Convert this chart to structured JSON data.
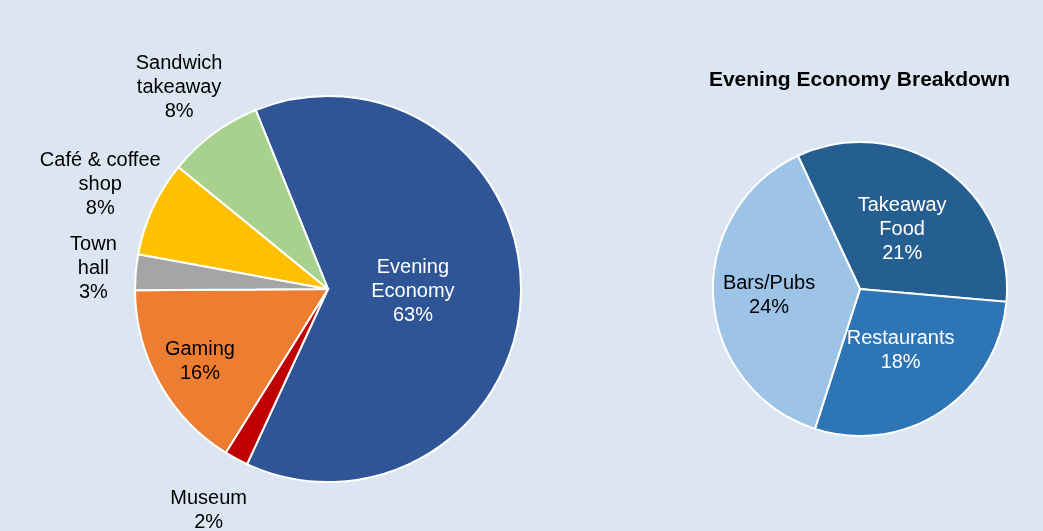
{
  "chart_data": [
    {
      "type": "pie",
      "categories": [
        "Evening Economy",
        "Museum",
        "Gaming",
        "Town hall",
        "Café & coffee shop",
        "Sandwich takeaway"
      ],
      "values": [
        63,
        2,
        16,
        3,
        8,
        8
      ],
      "value_labels": [
        "63%",
        "2%",
        "16%",
        "3%",
        "8%",
        "8%"
      ],
      "colors": [
        "#2f5597",
        "#c00000",
        "#ed7d31",
        "#a5a5a5",
        "#ffc000",
        "#a9d18e"
      ]
    },
    {
      "type": "pie",
      "title": "Evening Economy Breakdown",
      "categories": [
        "Takeaway Food",
        "Restaurants",
        "Bars/Pubs"
      ],
      "values": [
        21,
        18,
        24
      ],
      "value_labels": [
        "21%",
        "18%",
        "24%"
      ],
      "colors": [
        "#255e91",
        "#2e75b6",
        "#9dc3e6"
      ]
    }
  ]
}
